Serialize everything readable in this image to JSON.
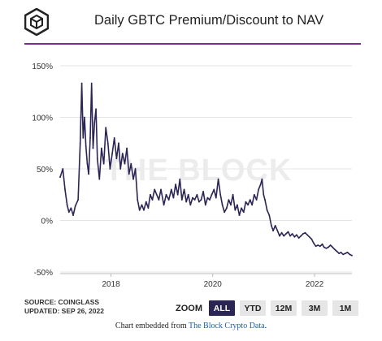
{
  "header": {
    "title": "Daily GBTC Premium/Discount to NAV",
    "logo_icon": "the-block-cube-icon"
  },
  "watermark": "THE BLOCK",
  "footer": {
    "source": "SOURCE: COINGLASS",
    "updated": "UPDATED: SEP 26, 2022",
    "embed_prefix": "Chart embedded from ",
    "embed_link": "The Block Crypto Data",
    "embed_suffix": "."
  },
  "zoom": {
    "label": "ZOOM",
    "buttons": [
      "ALL",
      "YTD",
      "12M",
      "3M",
      "1M"
    ],
    "selected": "ALL"
  },
  "colors": {
    "series": "#2b2556",
    "accent_rule": "#7b2d8e",
    "active_button": "#2b2556"
  },
  "chart_data": {
    "type": "line",
    "title": "Daily GBTC Premium/Discount to NAV",
    "xlabel": "",
    "ylabel": "",
    "y_unit": "%",
    "ylim": [
      -50,
      150
    ],
    "yticks": [
      150,
      100,
      50,
      0,
      -50
    ],
    "ytick_labels": [
      "150%",
      "100%",
      "50%",
      "0%",
      "-50%"
    ],
    "xlim": [
      "2017-01-01",
      "2022-09-26"
    ],
    "xticks": [
      "2018-01-01",
      "2020-01-01",
      "2022-01-01"
    ],
    "xtick_labels": [
      "2018",
      "2020",
      "2022"
    ],
    "grid": "horizontal",
    "series": [
      {
        "values": [
          [
            "2017-01-01",
            42
          ],
          [
            "2017-01-20",
            50
          ],
          [
            "2017-02-05",
            30
          ],
          [
            "2017-02-20",
            15
          ],
          [
            "2017-03-05",
            8
          ],
          [
            "2017-03-20",
            12
          ],
          [
            "2017-04-05",
            5
          ],
          [
            "2017-04-20",
            14
          ],
          [
            "2017-05-10",
            20
          ],
          [
            "2017-05-25",
            75
          ],
          [
            "2017-06-05",
            133
          ],
          [
            "2017-06-15",
            80
          ],
          [
            "2017-06-25",
            100
          ],
          [
            "2017-07-05",
            72
          ],
          [
            "2017-07-15",
            55
          ],
          [
            "2017-07-25",
            45
          ],
          [
            "2017-08-05",
            80
          ],
          [
            "2017-08-15",
            133
          ],
          [
            "2017-08-25",
            70
          ],
          [
            "2017-09-05",
            95
          ],
          [
            "2017-09-15",
            108
          ],
          [
            "2017-09-25",
            60
          ],
          [
            "2017-10-10",
            40
          ],
          [
            "2017-10-25",
            70
          ],
          [
            "2017-11-10",
            55
          ],
          [
            "2017-11-25",
            90
          ],
          [
            "2017-12-10",
            75
          ],
          [
            "2017-12-25",
            50
          ],
          [
            "2018-01-10",
            65
          ],
          [
            "2018-01-25",
            80
          ],
          [
            "2018-02-10",
            60
          ],
          [
            "2018-02-25",
            75
          ],
          [
            "2018-03-10",
            50
          ],
          [
            "2018-03-25",
            65
          ],
          [
            "2018-04-10",
            55
          ],
          [
            "2018-04-25",
            70
          ],
          [
            "2018-05-10",
            45
          ],
          [
            "2018-05-25",
            55
          ],
          [
            "2018-06-10",
            40
          ],
          [
            "2018-06-25",
            50
          ],
          [
            "2018-07-10",
            20
          ],
          [
            "2018-07-25",
            10
          ],
          [
            "2018-08-10",
            15
          ],
          [
            "2018-08-25",
            10
          ],
          [
            "2018-09-10",
            18
          ],
          [
            "2018-09-25",
            12
          ],
          [
            "2018-10-10",
            25
          ],
          [
            "2018-10-25",
            20
          ],
          [
            "2018-11-10",
            30
          ],
          [
            "2018-11-25",
            25
          ],
          [
            "2018-12-10",
            20
          ],
          [
            "2018-12-25",
            30
          ],
          [
            "2019-01-15",
            15
          ],
          [
            "2019-02-01",
            25
          ],
          [
            "2019-02-20",
            20
          ],
          [
            "2019-03-10",
            30
          ],
          [
            "2019-03-25",
            22
          ],
          [
            "2019-04-10",
            35
          ],
          [
            "2019-04-25",
            25
          ],
          [
            "2019-05-10",
            40
          ],
          [
            "2019-05-25",
            20
          ],
          [
            "2019-06-10",
            30
          ],
          [
            "2019-06-25",
            18
          ],
          [
            "2019-07-10",
            25
          ],
          [
            "2019-07-25",
            15
          ],
          [
            "2019-08-10",
            22
          ],
          [
            "2019-08-25",
            20
          ],
          [
            "2019-09-10",
            25
          ],
          [
            "2019-09-25",
            18
          ],
          [
            "2019-10-10",
            20
          ],
          [
            "2019-10-25",
            28
          ],
          [
            "2019-11-10",
            15
          ],
          [
            "2019-11-25",
            22
          ],
          [
            "2019-12-10",
            20
          ],
          [
            "2019-12-25",
            25
          ],
          [
            "2020-01-10",
            30
          ],
          [
            "2020-01-25",
            22
          ],
          [
            "2020-02-10",
            40
          ],
          [
            "2020-02-25",
            25
          ],
          [
            "2020-03-10",
            15
          ],
          [
            "2020-03-25",
            8
          ],
          [
            "2020-04-10",
            12
          ],
          [
            "2020-04-25",
            20
          ],
          [
            "2020-05-10",
            15
          ],
          [
            "2020-05-25",
            25
          ],
          [
            "2020-06-10",
            10
          ],
          [
            "2020-06-25",
            15
          ],
          [
            "2020-07-10",
            5
          ],
          [
            "2020-07-25",
            12
          ],
          [
            "2020-08-10",
            8
          ],
          [
            "2020-08-25",
            18
          ],
          [
            "2020-09-10",
            15
          ],
          [
            "2020-09-25",
            20
          ],
          [
            "2020-10-10",
            15
          ],
          [
            "2020-10-25",
            25
          ],
          [
            "2020-11-10",
            20
          ],
          [
            "2020-11-25",
            30
          ],
          [
            "2020-12-10",
            35
          ],
          [
            "2020-12-20",
            40
          ],
          [
            "2020-12-31",
            25
          ],
          [
            "2021-01-10",
            20
          ],
          [
            "2021-01-25",
            10
          ],
          [
            "2021-02-10",
            5
          ],
          [
            "2021-02-25",
            -5
          ],
          [
            "2021-03-10",
            -10
          ],
          [
            "2021-03-25",
            -5
          ],
          [
            "2021-04-10",
            -10
          ],
          [
            "2021-04-25",
            -15
          ],
          [
            "2021-05-10",
            -12
          ],
          [
            "2021-05-25",
            -15
          ],
          [
            "2021-06-10",
            -13
          ],
          [
            "2021-06-25",
            -11
          ],
          [
            "2021-07-10",
            -15
          ],
          [
            "2021-07-25",
            -13
          ],
          [
            "2021-08-10",
            -16
          ],
          [
            "2021-08-25",
            -14
          ],
          [
            "2021-09-10",
            -17
          ],
          [
            "2021-09-25",
            -15
          ],
          [
            "2021-10-10",
            -13
          ],
          [
            "2021-10-25",
            -12
          ],
          [
            "2021-11-10",
            -14
          ],
          [
            "2021-11-25",
            -16
          ],
          [
            "2021-12-10",
            -18
          ],
          [
            "2021-12-25",
            -22
          ],
          [
            "2022-01-10",
            -25
          ],
          [
            "2022-01-25",
            -24
          ],
          [
            "2022-02-10",
            -25
          ],
          [
            "2022-02-25",
            -23
          ],
          [
            "2022-03-10",
            -26
          ],
          [
            "2022-03-25",
            -27
          ],
          [
            "2022-04-10",
            -26
          ],
          [
            "2022-04-25",
            -24
          ],
          [
            "2022-05-10",
            -26
          ],
          [
            "2022-05-25",
            -28
          ],
          [
            "2022-06-10",
            -30
          ],
          [
            "2022-06-25",
            -32
          ],
          [
            "2022-07-10",
            -31
          ],
          [
            "2022-07-25",
            -33
          ],
          [
            "2022-08-10",
            -32
          ],
          [
            "2022-08-25",
            -31
          ],
          [
            "2022-09-10",
            -33
          ],
          [
            "2022-09-26",
            -34
          ]
        ]
      }
    ]
  }
}
